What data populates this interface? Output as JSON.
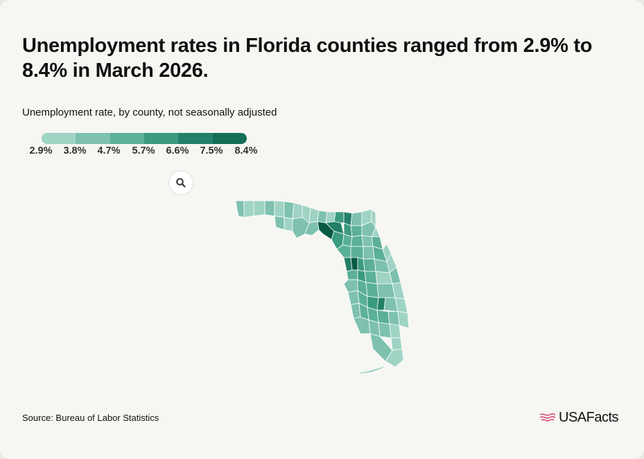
{
  "title": "Unemployment rates in Florida counties ranged from 2.9% to 8.4% in March 2026.",
  "subtitle": "Unemployment rate, by county, not seasonally adjusted",
  "legend": {
    "labels": [
      "2.9%",
      "3.8%",
      "4.7%",
      "5.7%",
      "6.6%",
      "7.5%",
      "8.4%"
    ],
    "colors": [
      "#9fd3c4",
      "#7dc1ae",
      "#5bb098",
      "#3a9a80",
      "#237f68",
      "#136f55",
      "#075a43"
    ]
  },
  "zoom_button": {
    "icon": "search-icon"
  },
  "map": {
    "region": "Florida",
    "unit": "county"
  },
  "source": "Source: Bureau of Labor Statistics",
  "logo": {
    "text": "USAFacts",
    "accent": "#e0497c"
  }
}
